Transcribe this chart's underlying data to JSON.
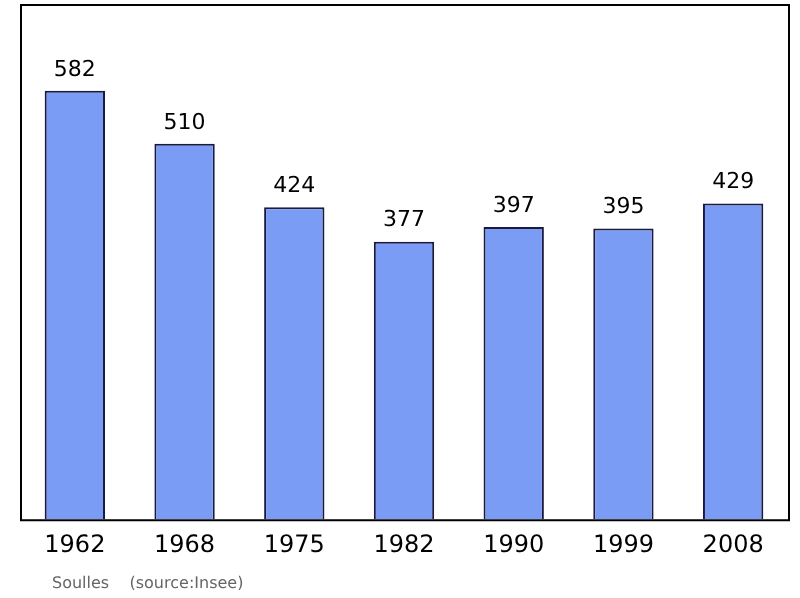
{
  "chart_data": {
    "type": "bar",
    "categories": [
      "1962",
      "1968",
      "1975",
      "1982",
      "1990",
      "1999",
      "2008"
    ],
    "values": [
      582,
      510,
      424,
      377,
      397,
      395,
      429
    ],
    "color": "#7b9cf4",
    "data_labels": true,
    "tick_labels": "x",
    "grid": false,
    "annotations": [
      "Soulles    (source:Insee)"
    ]
  }
}
